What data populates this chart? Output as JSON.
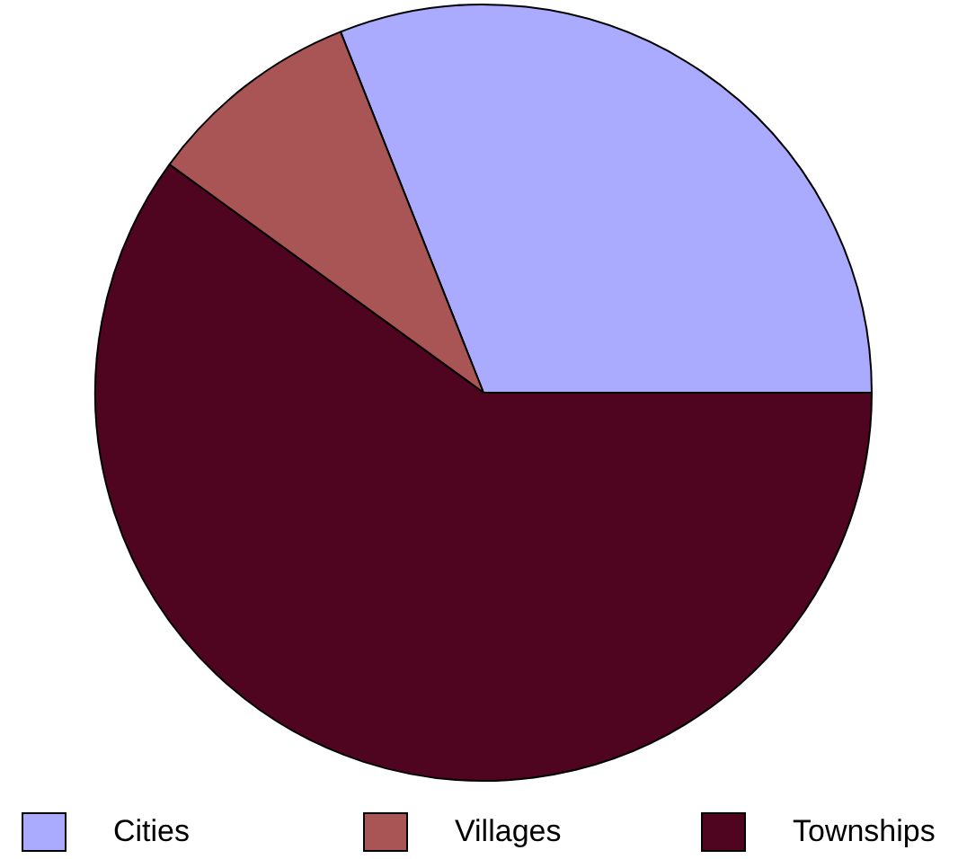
{
  "chart_data": {
    "type": "pie",
    "categories": [
      "Cities",
      "Villages",
      "Townships"
    ],
    "values": [
      31,
      9,
      60
    ],
    "colors": [
      "#aaaaff",
      "#aa5555",
      "#4f0520"
    ],
    "legend": "bottom"
  }
}
